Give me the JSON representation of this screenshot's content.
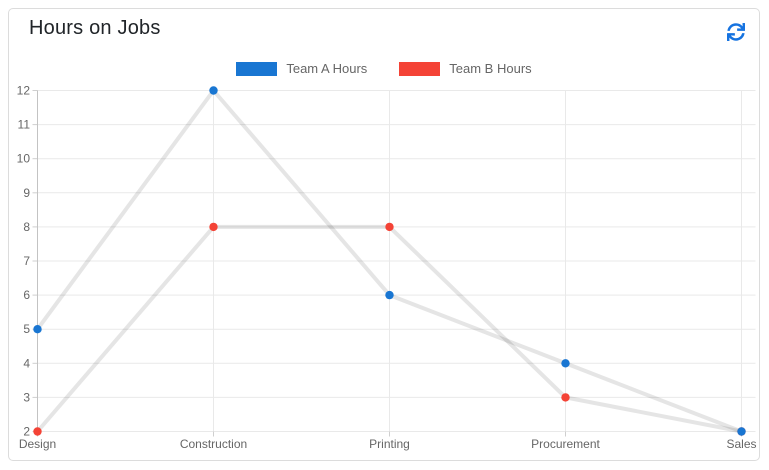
{
  "card": {
    "title": "Hours on Jobs",
    "refresh_button": {
      "icon": "sync-icon",
      "color": "#1673e0"
    }
  },
  "chart_data": {
    "type": "line",
    "title": "Hours on Jobs",
    "categories": [
      "Design",
      "Construction",
      "Printing",
      "Procurement",
      "Sales"
    ],
    "series": [
      {
        "name": "Team A Hours",
        "color": "#1976d2",
        "values": [
          5,
          12,
          6,
          4,
          2
        ]
      },
      {
        "name": "Team B Hours",
        "color": "#f44336",
        "values": [
          2,
          8,
          8,
          3,
          2
        ]
      }
    ],
    "xlabel": "",
    "ylabel": "",
    "ylim": [
      2,
      12
    ],
    "ytick_step": 1,
    "grid": true,
    "legend_position": "top",
    "line_color": "rgba(0,0,0,0.10)",
    "grid_color": "#e9e9e9",
    "axis_line_color": "#c3c3c3",
    "tick_color": "#cfcfcf",
    "tick_label_color": "#666666"
  }
}
